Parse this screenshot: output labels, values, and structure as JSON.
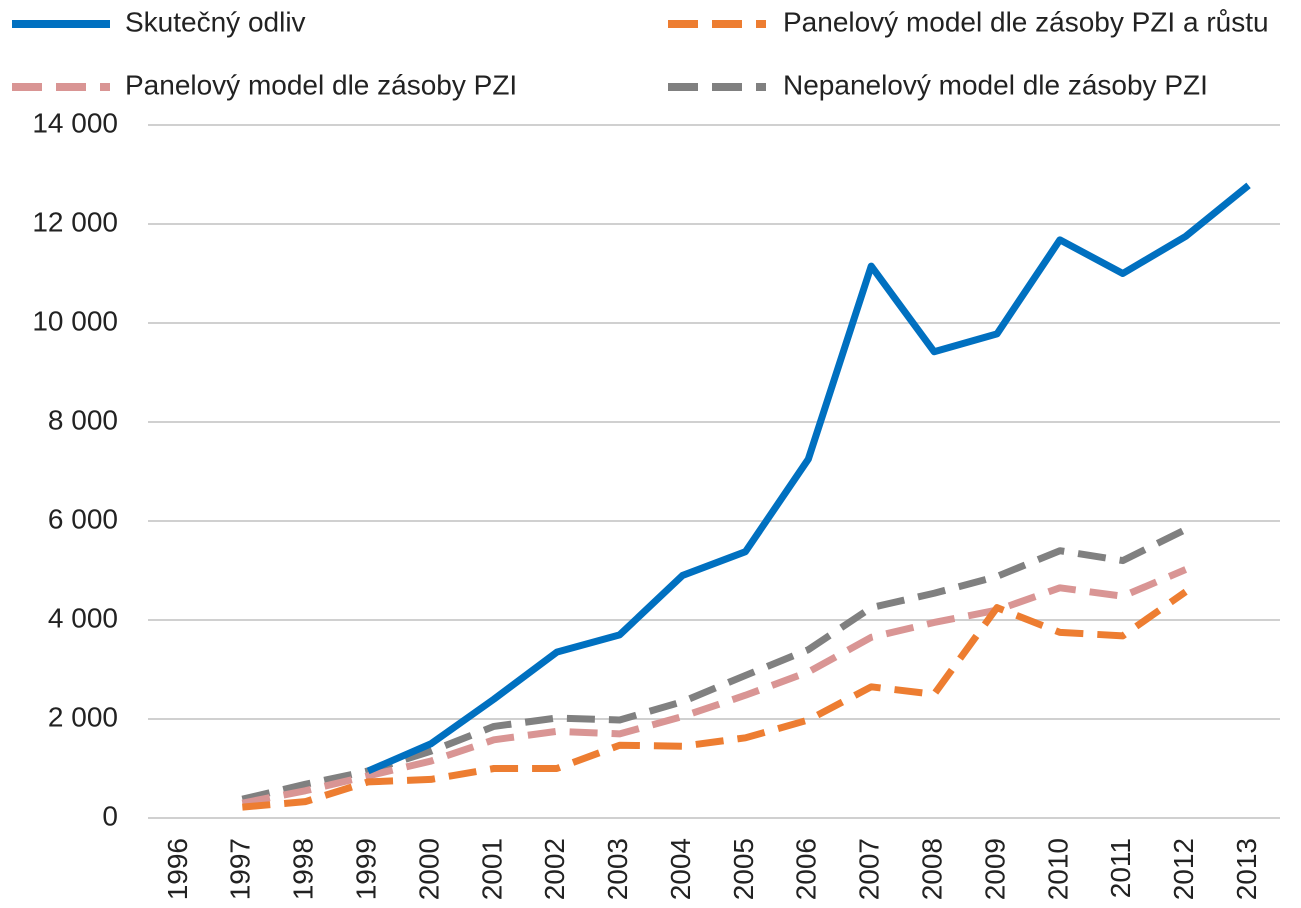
{
  "chart_data": {
    "type": "line",
    "categories": [
      "1996",
      "1997",
      "1998",
      "1999",
      "2000",
      "2001",
      "2002",
      "2003",
      "2004",
      "2005",
      "2006",
      "2007",
      "2008",
      "2009",
      "2010",
      "2011",
      "2012",
      "2013"
    ],
    "series": [
      {
        "name": "Skutečný odliv",
        "color": "#0070c0",
        "dashed": false,
        "values": [
          null,
          null,
          null,
          950,
          1500,
          2400,
          3350,
          3700,
          4900,
          5380,
          7250,
          11150,
          9420,
          9780,
          11680,
          11000,
          11750,
          12780
        ]
      },
      {
        "name": "Panelový model dle zásoby PZI a růstu",
        "color": "#ed7d31",
        "dashed": true,
        "values": [
          null,
          220,
          330,
          730,
          780,
          1000,
          1000,
          1470,
          1450,
          1620,
          1980,
          2650,
          2500,
          4250,
          3750,
          3680,
          4570,
          null
        ]
      },
      {
        "name": "Panelový model dle zásoby PZI",
        "color": "#d99594",
        "dashed": true,
        "values": [
          null,
          300,
          550,
          850,
          1150,
          1580,
          1750,
          1700,
          2050,
          2480,
          2950,
          3650,
          3950,
          4200,
          4650,
          4480,
          5020,
          null
        ]
      },
      {
        "name": "Nepanelový model dle zásoby PZI",
        "color": "#808080",
        "dashed": true,
        "values": [
          null,
          380,
          680,
          950,
          1350,
          1850,
          2020,
          1980,
          2350,
          2880,
          3400,
          4250,
          4540,
          4880,
          5400,
          5200,
          5830,
          null
        ]
      }
    ],
    "ylim": [
      0,
      14000
    ],
    "yticks": [
      0,
      {
        "value": 2000,
        "label": "2 000"
      },
      {
        "value": 4000,
        "label": "4 000"
      },
      {
        "value": 6000,
        "label": "6 000"
      },
      {
        "value": 8000,
        "label": "8 000"
      },
      {
        "value": 10000,
        "label": "10 000"
      },
      {
        "value": 12000,
        "label": "12 000"
      },
      {
        "value": 14000,
        "label": "14 000"
      }
    ],
    "grid": true,
    "legend": "top"
  }
}
